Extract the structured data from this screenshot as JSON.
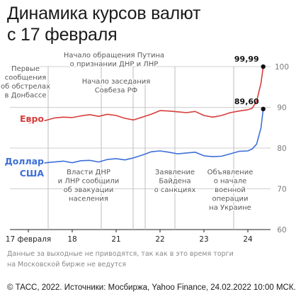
{
  "header": {
    "title_line1": "Динамика курсов валют",
    "title_line2": "с 17 февраля"
  },
  "footer": {
    "note_line1": "Данные за выходные не приводятся, так как в это время торги",
    "note_line2": "на Московской бирже не ведутся",
    "source": "© ТАСС, 2022. Источники: Мосбиржа, Yahoo Finance, 24.02.2022 10:00 МСК."
  },
  "colors": {
    "euro": "#d63d3a",
    "usd": "#3d6fd9",
    "grid": "#cfcfcf",
    "axis": "#222222"
  },
  "chart_data": {
    "type": "line",
    "title": "Динамика курсов валют с 17 февраля",
    "x_ticks": [
      "17 февраля",
      "18",
      "21",
      "22",
      "23",
      "24"
    ],
    "ylim": [
      60,
      100
    ],
    "y_ticks": [
      "60",
      "70",
      "80",
      "90",
      "100"
    ],
    "grid": true,
    "series": [
      {
        "name": "Евро",
        "x": [
          "17.0",
          "17.2",
          "17.4",
          "17.6",
          "17.8",
          "18.0",
          "18.2",
          "18.4",
          "18.6",
          "18.8",
          "21.0",
          "21.2",
          "21.4",
          "21.6",
          "21.8",
          "22.0",
          "22.2",
          "22.4",
          "22.6",
          "22.8",
          "23.0",
          "23.2",
          "23.4",
          "23.6",
          "23.8",
          "24.0",
          "24.1",
          "24.2",
          "24.3",
          "24.35"
        ],
        "values": [
          86.2,
          86.5,
          86.8,
          87.4,
          87.6,
          87.5,
          87.9,
          88.2,
          87.8,
          88.3,
          88.0,
          87.3,
          86.9,
          87.6,
          88.3,
          89.2,
          89.1,
          88.9,
          88.7,
          89.0,
          88.0,
          87.6,
          88.0,
          88.7,
          89.1,
          89.4,
          89.8,
          91.5,
          96.0,
          99.99
        ],
        "end_label": "99,99"
      },
      {
        "name": "Доллар США",
        "x": [
          "17.0",
          "17.2",
          "17.4",
          "17.6",
          "17.8",
          "18.0",
          "18.2",
          "18.4",
          "18.6",
          "18.8",
          "21.0",
          "21.2",
          "21.4",
          "21.6",
          "21.8",
          "22.0",
          "22.2",
          "22.4",
          "22.6",
          "22.8",
          "23.0",
          "23.2",
          "23.4",
          "23.6",
          "23.8",
          "24.0",
          "24.1",
          "24.2",
          "24.3",
          "24.35"
        ],
        "values": [
          75.9,
          76.1,
          76.4,
          76.6,
          76.8,
          76.4,
          76.9,
          77.0,
          76.6,
          77.2,
          77.4,
          77.1,
          77.6,
          78.3,
          79.1,
          79.3,
          79.0,
          78.6,
          78.8,
          79.0,
          78.1,
          77.9,
          78.0,
          78.6,
          79.2,
          79.3,
          79.8,
          81.0,
          85.0,
          89.6
        ],
        "end_label": "89,60"
      }
    ],
    "annotations": [
      {
        "lines": [
          "Первые",
          "сообщения",
          "об обстрелах",
          "в Донбассе"
        ]
      },
      {
        "lines": [
          "Начало обращения Путина",
          "о признании ДНР и ЛНР"
        ]
      },
      {
        "lines": [
          "Начало заседания",
          "Совбеза РФ"
        ]
      },
      {
        "lines": [
          "Власти ДНР",
          "и ЛНР сообщили",
          "об эвакуации",
          "населения"
        ]
      },
      {
        "lines": [
          "Заявление",
          "Байдена",
          "о санкциях"
        ]
      },
      {
        "lines": [
          "Объявление",
          "о начале",
          "военной",
          "операции",
          "на Украине"
        ]
      }
    ]
  }
}
